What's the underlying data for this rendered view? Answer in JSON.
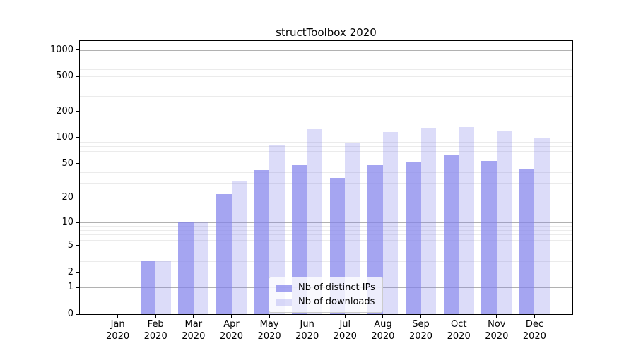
{
  "title": "structToolbox 2020",
  "chart_data": {
    "type": "bar",
    "title": "structToolbox 2020",
    "xlabel": "",
    "ylabel": "",
    "categories": [
      "Jan 2020",
      "Feb 2020",
      "Mar 2020",
      "Apr 2020",
      "May 2020",
      "Jun 2020",
      "Jul 2020",
      "Aug 2020",
      "Sep 2020",
      "Oct 2020",
      "Nov 2020",
      "Dec 2020"
    ],
    "series": [
      {
        "name": "Nb of distinct IPs",
        "color": "rgba(130,130,235,0.72)",
        "values": [
          0,
          3,
          10,
          22,
          42,
          48,
          34,
          48,
          52,
          64,
          54,
          44
        ]
      },
      {
        "name": "Nb of downloads",
        "color": "rgba(130,130,235,0.28)",
        "values": [
          0,
          3,
          10,
          32,
          83,
          125,
          88,
          116,
          128,
          133,
          120,
          99
        ]
      }
    ],
    "yscale": "log10(1+v)",
    "yticks": [
      0,
      1,
      2,
      5,
      10,
      20,
      50,
      100,
      200,
      500,
      1000
    ],
    "ylim": [
      0,
      1263
    ],
    "grid": "both",
    "legend_position": "lower center"
  },
  "colors": {
    "bar_dark": "rgba(130,130,235,0.72)",
    "bar_light": "rgba(130,130,235,0.28)",
    "grid_major": "#b1b1b1",
    "grid_minor": "#ebebeb",
    "spine": "#000000",
    "background": "#ffffff"
  }
}
